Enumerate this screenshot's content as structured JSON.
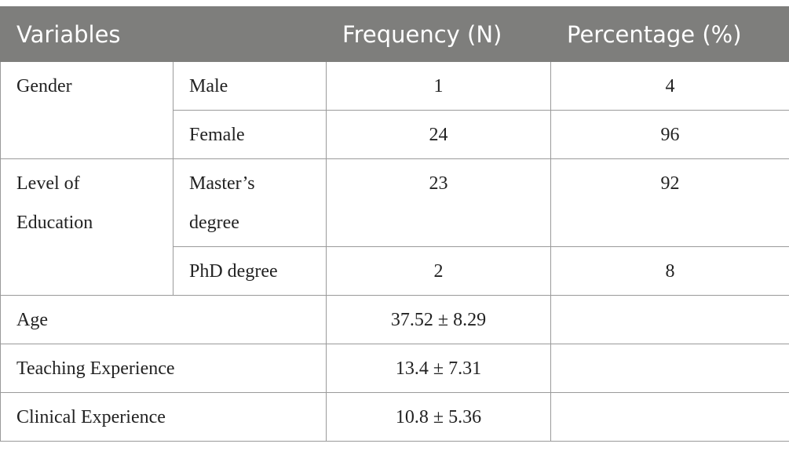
{
  "table": {
    "header": [
      "Variables",
      "Frequency (N)",
      "Percentage (%)"
    ],
    "groups": [
      {
        "variable": "Gender",
        "items": [
          {
            "level": "Male",
            "frequency": 1,
            "percentage": 4
          },
          {
            "level": "Female",
            "frequency": 24,
            "percentage": 96
          }
        ]
      },
      {
        "variable": "Level of Education",
        "items": [
          {
            "level": "Master’s degree",
            "frequency": 23,
            "percentage": 92
          },
          {
            "level": "PhD degree",
            "frequency": 2,
            "percentage": 8
          }
        ]
      }
    ],
    "summary": [
      {
        "variable": "Age",
        "value": "37.52 ± 8.29"
      },
      {
        "variable": "Teaching Experience",
        "value": "13.4 ± 7.31"
      },
      {
        "variable": "Clinical Experience",
        "value": "10.8 ± 5.36"
      }
    ]
  }
}
